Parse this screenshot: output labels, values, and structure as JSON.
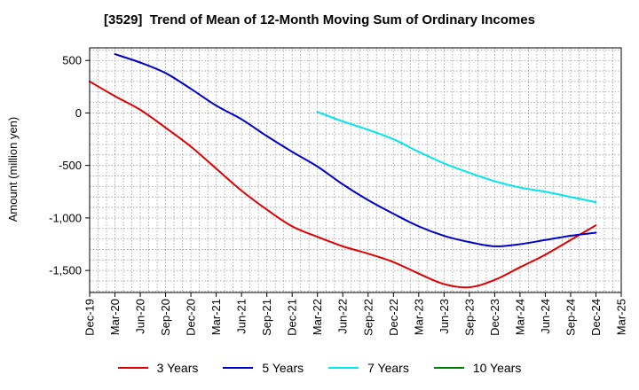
{
  "chart_data": {
    "type": "line",
    "title": "[3529]  Trend of Mean of 12-Month Moving Sum of Ordinary Incomes",
    "xlabel": "",
    "ylabel": "Amount (million yen)",
    "x_ticks": [
      "Dec-19",
      "Mar-20",
      "Jun-20",
      "Sep-20",
      "Dec-20",
      "Mar-21",
      "Jun-21",
      "Sep-21",
      "Dec-21",
      "Mar-22",
      "Jun-22",
      "Sep-22",
      "Dec-22",
      "Mar-23",
      "Jun-23",
      "Sep-23",
      "Dec-23",
      "Mar-24",
      "Jun-24",
      "Sep-24",
      "Dec-24",
      "Mar-25"
    ],
    "y_ticks": [
      500,
      0,
      -500,
      -1000,
      -1500
    ],
    "y_tick_labels": [
      "500",
      "0",
      "-500",
      "-1,000",
      "-1,500"
    ],
    "ylim": [
      -1710,
      620
    ],
    "grid": true,
    "legend_position": "bottom",
    "series": [
      {
        "name": "3 Years",
        "color": "#e00000",
        "points": [
          [
            0,
            300
          ],
          [
            1,
            160
          ],
          [
            2,
            30
          ],
          [
            3,
            -140
          ],
          [
            4,
            -320
          ],
          [
            5,
            -530
          ],
          [
            6,
            -740
          ],
          [
            7,
            -920
          ],
          [
            8,
            -1080
          ],
          [
            9,
            -1180
          ],
          [
            10,
            -1270
          ],
          [
            11,
            -1340
          ],
          [
            12,
            -1420
          ],
          [
            13,
            -1530
          ],
          [
            14,
            -1630
          ],
          [
            15,
            -1660
          ],
          [
            16,
            -1590
          ],
          [
            17,
            -1470
          ],
          [
            18,
            -1350
          ],
          [
            19,
            -1210
          ],
          [
            20,
            -1070
          ]
        ]
      },
      {
        "name": "5 Years",
        "color": "#0000cc",
        "points": [
          [
            1,
            560
          ],
          [
            2,
            480
          ],
          [
            3,
            380
          ],
          [
            4,
            230
          ],
          [
            5,
            70
          ],
          [
            6,
            -60
          ],
          [
            7,
            -220
          ],
          [
            8,
            -370
          ],
          [
            9,
            -510
          ],
          [
            10,
            -680
          ],
          [
            11,
            -830
          ],
          [
            12,
            -960
          ],
          [
            13,
            -1080
          ],
          [
            14,
            -1170
          ],
          [
            15,
            -1230
          ],
          [
            16,
            -1270
          ],
          [
            17,
            -1250
          ],
          [
            18,
            -1210
          ],
          [
            19,
            -1170
          ],
          [
            20,
            -1140
          ]
        ]
      },
      {
        "name": "7 Years",
        "color": "#00e5ee",
        "points": [
          [
            9,
            10
          ],
          [
            10,
            -80
          ],
          [
            11,
            -160
          ],
          [
            12,
            -250
          ],
          [
            13,
            -370
          ],
          [
            14,
            -480
          ],
          [
            15,
            -570
          ],
          [
            16,
            -650
          ],
          [
            17,
            -710
          ],
          [
            18,
            -750
          ],
          [
            19,
            -800
          ],
          [
            20,
            -850
          ]
        ]
      },
      {
        "name": "10 Years",
        "color": "#008000",
        "points": []
      }
    ]
  }
}
